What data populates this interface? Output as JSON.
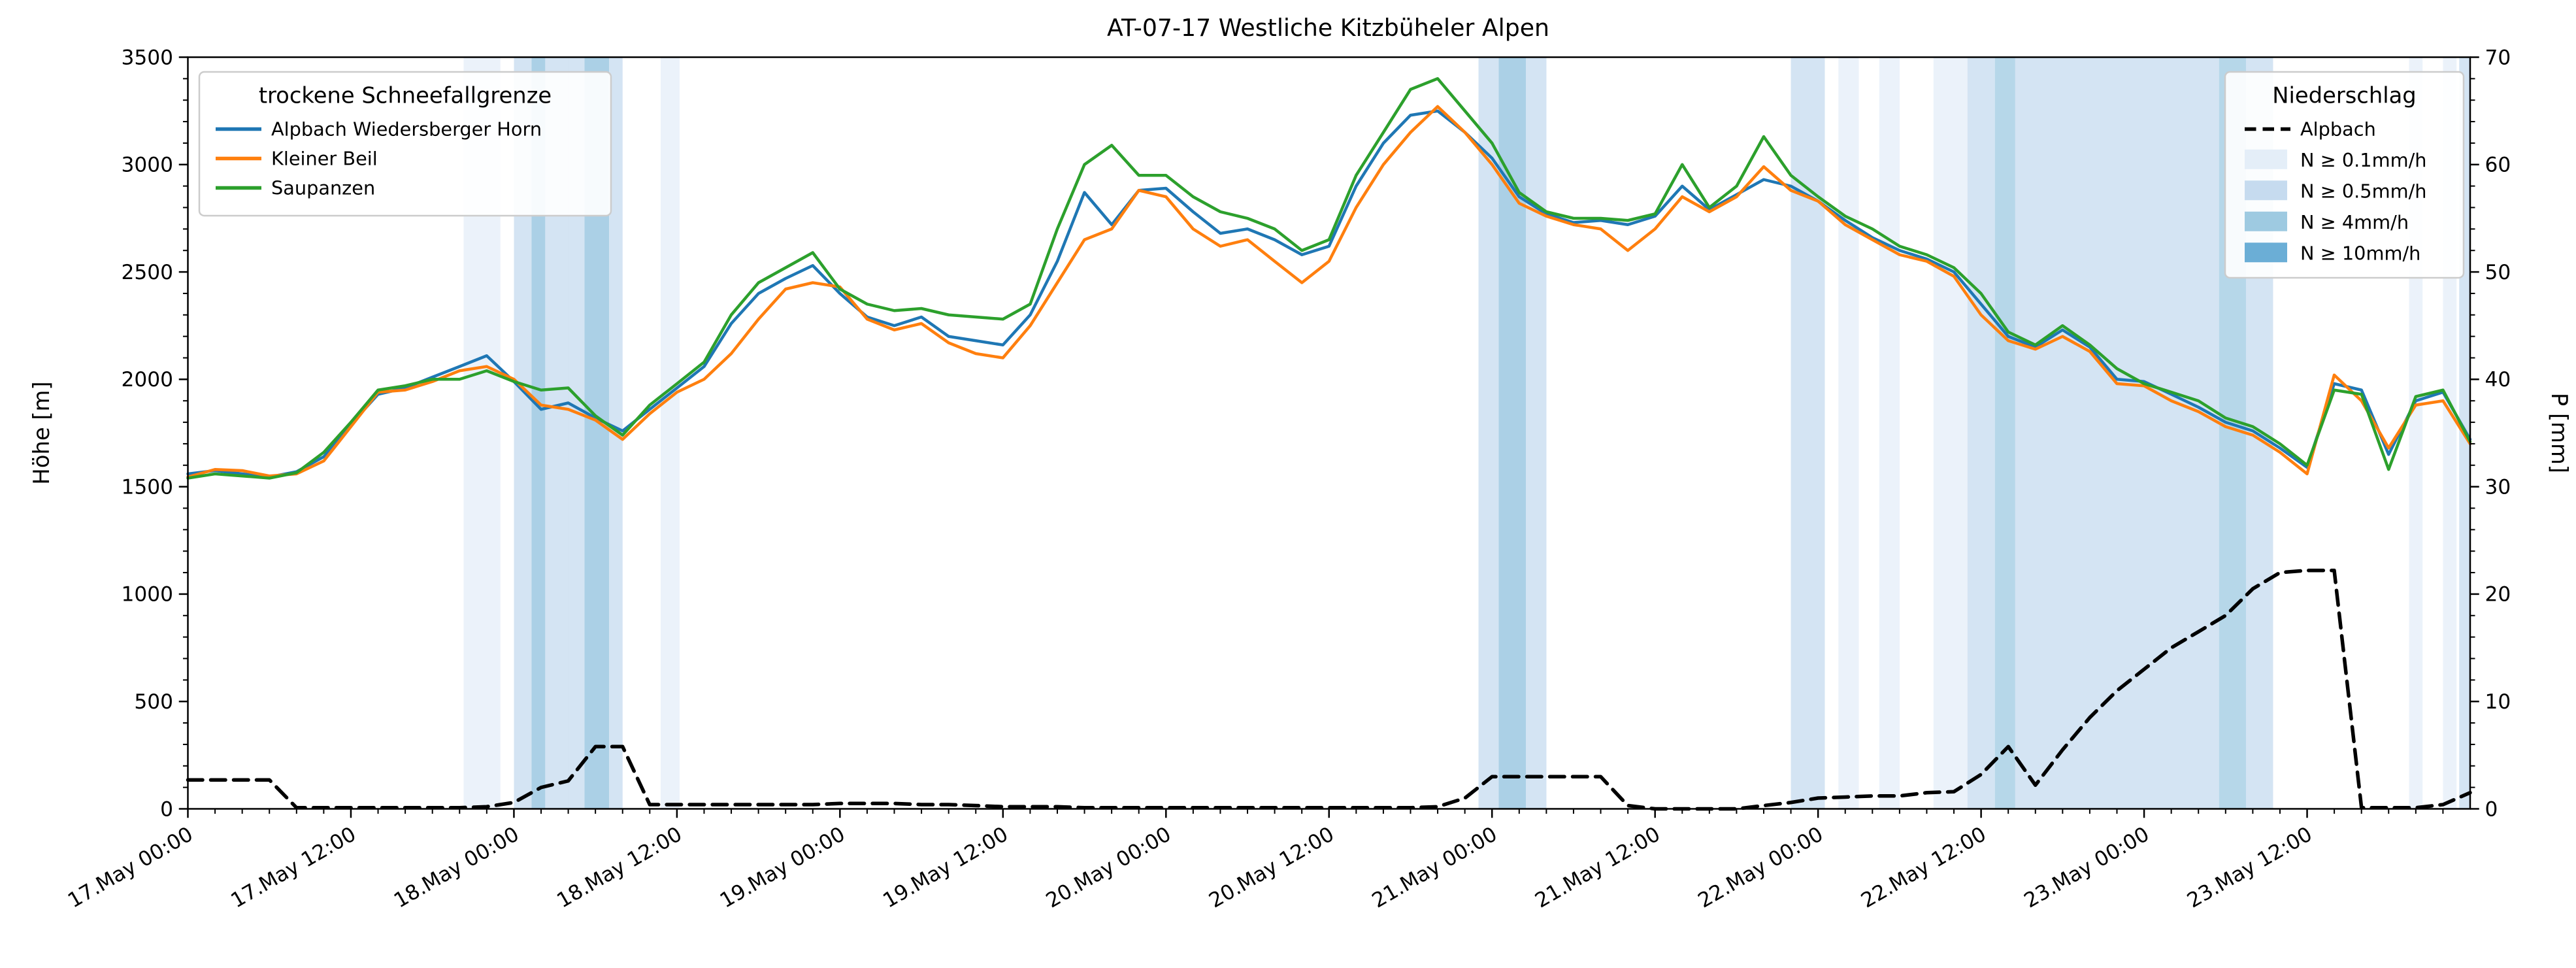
{
  "chart_data": {
    "type": "line",
    "title": "AT-07-17 Westliche Kitzbüheler Alpen",
    "ylabel_left": "Höhe [m]",
    "ylabel_right": "P [mm]",
    "ylim_left": [
      0,
      3500
    ],
    "ylim_right": [
      0,
      70
    ],
    "xlim_hours": [
      0,
      168
    ],
    "x_origin_label": "17.May 00:00",
    "x_tick_hours": [
      0,
      12,
      24,
      36,
      48,
      60,
      72,
      84,
      96,
      108,
      120,
      132,
      144,
      156
    ],
    "x_tick_labels": [
      "17.May 00:00",
      "17.May 12:00",
      "18.May 00:00",
      "18.May 12:00",
      "19.May 00:00",
      "19.May 12:00",
      "20.May 00:00",
      "20.May 12:00",
      "21.May 00:00",
      "21.May 12:00",
      "22.May 00:00",
      "22.May 12:00",
      "23.May 00:00",
      "23.May 12:00"
    ],
    "x_minor_step_hours": 2,
    "y_left_ticks": [
      0,
      500,
      1000,
      1500,
      2000,
      2500,
      3000,
      3500
    ],
    "y_left_minor_step": 100,
    "y_right_ticks": [
      0,
      10,
      20,
      30,
      40,
      50,
      60,
      70
    ],
    "y_right_minor_step": 2,
    "x_start_hour": 0,
    "x_step_hours": 2,
    "series": [
      {
        "name": "Alpbach Wiedersberger Horn",
        "axis": "left",
        "color": "#1f77b4",
        "style": "solid",
        "values": [
          1560,
          1575,
          1560,
          1545,
          1570,
          1640,
          1790,
          1930,
          1960,
          2010,
          2060,
          2110,
          1990,
          1860,
          1890,
          1820,
          1760,
          1860,
          1960,
          2060,
          2260,
          2400,
          2470,
          2530,
          2400,
          2290,
          2250,
          2290,
          2200,
          2180,
          2160,
          2300,
          2550,
          2870,
          2720,
          2880,
          2890,
          2780,
          2680,
          2700,
          2650,
          2580,
          2620,
          2900,
          3100,
          3230,
          3250,
          3150,
          3030,
          2850,
          2770,
          2730,
          2740,
          2720,
          2760,
          2900,
          2790,
          2860,
          2930,
          2900,
          2830,
          2740,
          2660,
          2600,
          2560,
          2500,
          2350,
          2200,
          2150,
          2230,
          2150,
          2000,
          1990,
          1930,
          1870,
          1800,
          1760,
          1680,
          1590,
          1980,
          1950,
          1650,
          1900,
          1940,
          1720
        ]
      },
      {
        "name": "Kleiner Beil",
        "axis": "left",
        "color": "#ff7f0e",
        "style": "solid",
        "values": [
          1545,
          1580,
          1575,
          1550,
          1560,
          1620,
          1780,
          1940,
          1950,
          1990,
          2040,
          2060,
          2000,
          1880,
          1860,
          1810,
          1720,
          1840,
          1940,
          2000,
          2120,
          2280,
          2420,
          2450,
          2430,
          2280,
          2230,
          2260,
          2170,
          2120,
          2100,
          2250,
          2450,
          2650,
          2700,
          2880,
          2850,
          2700,
          2620,
          2650,
          2550,
          2450,
          2550,
          2800,
          3000,
          3150,
          3270,
          3150,
          3000,
          2820,
          2760,
          2720,
          2700,
          2600,
          2700,
          2850,
          2780,
          2850,
          2990,
          2880,
          2830,
          2720,
          2650,
          2580,
          2550,
          2480,
          2300,
          2180,
          2140,
          2200,
          2130,
          1980,
          1970,
          1900,
          1850,
          1780,
          1740,
          1660,
          1560,
          2020,
          1900,
          1680,
          1880,
          1900,
          1700
        ]
      },
      {
        "name": "Saupanzen",
        "axis": "left",
        "color": "#2ca02c",
        "style": "solid",
        "values": [
          1540,
          1560,
          1550,
          1540,
          1565,
          1660,
          1800,
          1950,
          1970,
          2000,
          2000,
          2040,
          1990,
          1950,
          1960,
          1830,
          1740,
          1880,
          1980,
          2080,
          2300,
          2450,
          2520,
          2590,
          2420,
          2350,
          2320,
          2330,
          2300,
          2290,
          2280,
          2350,
          2700,
          3000,
          3090,
          2950,
          2950,
          2850,
          2780,
          2750,
          2700,
          2600,
          2650,
          2950,
          3150,
          3350,
          3400,
          3250,
          3100,
          2870,
          2780,
          2750,
          2750,
          2740,
          2770,
          3000,
          2800,
          2900,
          3130,
          2950,
          2850,
          2760,
          2700,
          2620,
          2580,
          2520,
          2400,
          2220,
          2160,
          2250,
          2160,
          2050,
          1980,
          1940,
          1900,
          1820,
          1780,
          1700,
          1600,
          1950,
          1930,
          1580,
          1920,
          1950,
          1710
        ]
      },
      {
        "name": "Alpbach",
        "axis": "right",
        "color": "#000000",
        "style": "dashed",
        "values": [
          2.7,
          2.7,
          2.7,
          2.7,
          0.1,
          0.1,
          0.1,
          0.1,
          0.1,
          0.1,
          0.1,
          0.2,
          0.6,
          2.0,
          2.6,
          5.8,
          5.8,
          0.4,
          0.4,
          0.4,
          0.4,
          0.4,
          0.4,
          0.4,
          0.5,
          0.5,
          0.5,
          0.4,
          0.4,
          0.3,
          0.2,
          0.2,
          0.2,
          0.1,
          0.1,
          0.1,
          0.1,
          0.1,
          0.1,
          0.1,
          0.1,
          0.1,
          0.1,
          0.1,
          0.1,
          0.1,
          0.2,
          1.0,
          3.0,
          3.0,
          3.0,
          3.0,
          3.0,
          0.3,
          0.0,
          0.0,
          0.0,
          0.0,
          0.3,
          0.6,
          1.0,
          1.1,
          1.2,
          1.2,
          1.5,
          1.6,
          3.2,
          5.8,
          2.2,
          5.5,
          8.5,
          11.0,
          13.0,
          15.0,
          16.5,
          18.0,
          20.5,
          22.0,
          22.2,
          22.2,
          0.1,
          0.1,
          0.1,
          0.4,
          1.5
        ]
      }
    ],
    "precip_bands": [
      {
        "start": 20.3,
        "end": 23.0,
        "level": "0.1"
      },
      {
        "start": 24.0,
        "end": 28.0,
        "level": "0.5"
      },
      {
        "start": 25.3,
        "end": 26.3,
        "level": "4"
      },
      {
        "start": 28.0,
        "end": 32.0,
        "level": "0.5"
      },
      {
        "start": 29.2,
        "end": 31.0,
        "level": "4"
      },
      {
        "start": 34.8,
        "end": 36.2,
        "level": "0.1"
      },
      {
        "start": 95.0,
        "end": 100.0,
        "level": "0.5"
      },
      {
        "start": 96.5,
        "end": 98.5,
        "level": "4"
      },
      {
        "start": 118.0,
        "end": 120.5,
        "level": "0.5"
      },
      {
        "start": 121.5,
        "end": 123.0,
        "level": "0.1"
      },
      {
        "start": 124.5,
        "end": 126.0,
        "level": "0.1"
      },
      {
        "start": 128.5,
        "end": 131.0,
        "level": "0.1"
      },
      {
        "start": 131.0,
        "end": 133.0,
        "level": "0.5"
      },
      {
        "start": 133.0,
        "end": 134.5,
        "level": "4"
      },
      {
        "start": 134.5,
        "end": 149.5,
        "level": "0.5"
      },
      {
        "start": 149.5,
        "end": 151.5,
        "level": "4"
      },
      {
        "start": 151.5,
        "end": 153.5,
        "level": "0.5"
      },
      {
        "start": 163.5,
        "end": 164.5,
        "level": "0.1"
      },
      {
        "start": 166.0,
        "end": 167.0,
        "level": "0.1"
      },
      {
        "start": 167.2,
        "end": 168.0,
        "level": "0.5"
      }
    ],
    "band_colors": {
      "0.1": "#e4eef8",
      "0.5": "#c6dbef",
      "4": "#9ecae1",
      "10": "#6baed6"
    },
    "legend_left": {
      "title": "trockene Schneefallgrenze",
      "entries": [
        {
          "label": "Alpbach Wiedersberger Horn",
          "color": "#1f77b4"
        },
        {
          "label": "Kleiner Beil",
          "color": "#ff7f0e"
        },
        {
          "label": "Saupanzen",
          "color": "#2ca02c"
        }
      ]
    },
    "legend_right": {
      "title": "Niederschlag",
      "line_entry": {
        "label": "Alpbach",
        "color": "#000000",
        "style": "dashed"
      },
      "band_entries": [
        {
          "label": "N ≥ 0.1mm/h",
          "level": "0.1",
          "color": "#e4eef8"
        },
        {
          "label": "N ≥ 0.5mm/h",
          "level": "0.5",
          "color": "#c6dbef"
        },
        {
          "label": "N ≥ 4mm/h",
          "level": "4",
          "color": "#9ecae1"
        },
        {
          "label": "N ≥ 10mm/h",
          "level": "10",
          "color": "#6baed6"
        }
      ]
    }
  }
}
